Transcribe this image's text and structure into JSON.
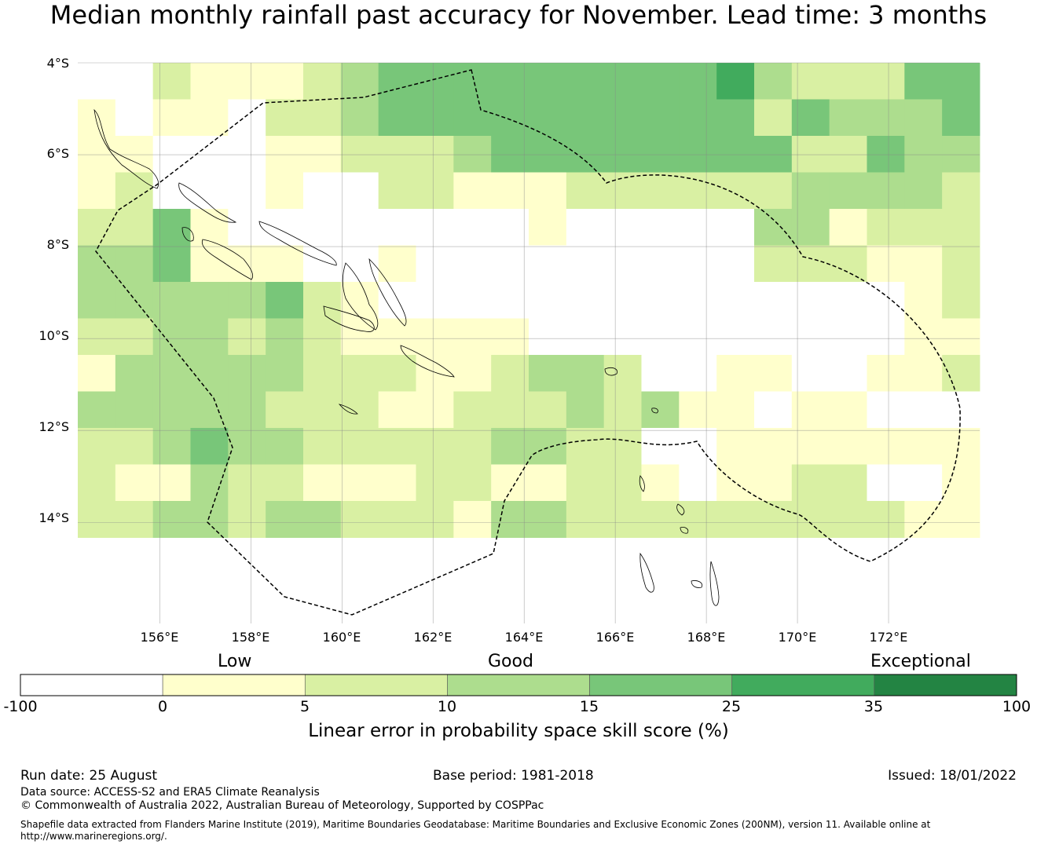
{
  "title": "Median monthly rainfall past accuracy for November. Lead time: 3 months",
  "map": {
    "lon_range": [
      154.2,
      174.0
    ],
    "lat_range": [
      -4.0,
      -16.2
    ],
    "lat_labels": [
      "4°S",
      "6°S",
      "8°S",
      "10°S",
      "12°S",
      "14°S"
    ],
    "lon_labels": [
      "156°E",
      "158°E",
      "160°E",
      "162°E",
      "164°E",
      "166°E",
      "168°E",
      "170°E",
      "172°E"
    ],
    "grid_cols": 24,
    "grid_rows": 13,
    "skill_grid": [
      "002111234444444445322244",
      "101102234444444444243334",
      "110001122234444444422433",
      "120001002211122222233332",
      "224100000000100000331222",
      "334111001000000000222112",
      "333334210000000000000012",
      "223323211111000000000011",
      "133333222112332001100112",
      "333332221122232311011000",
      "223433222223322001111111",
      "211322111221122101122001",
      "223323322213322222222211"
    ],
    "colors": [
      "#ffffff",
      "#ffffcc",
      "#d9f0a3",
      "#addd8e",
      "#78c679",
      "#41ab5d",
      "#238443"
    ]
  },
  "colorbar": {
    "category_labels": [
      "Low",
      "Good",
      "Exceptional"
    ],
    "ticks": [
      "-100",
      "0",
      "5",
      "10",
      "15",
      "25",
      "35",
      "100"
    ],
    "colors": [
      "#ffffff",
      "#ffffcc",
      "#d9f0a3",
      "#addd8e",
      "#78c679",
      "#41ab5d",
      "#238443"
    ],
    "title": "Linear error in probability space skill score (%)"
  },
  "footer": {
    "run_date": "Run date: 25 August",
    "base_period": "Base period: 1981-2018",
    "issued": "Issued: 18/01/2022",
    "data_source": "Data source: ACCESS-S2 and ERA5 Climate Reanalysis",
    "copyright": "© Commonwealth of Australia 2022, Australian Bureau of Meteorology, Supported by COSPPac",
    "shapefile_line1": "Shapefile data extracted from Flanders Marine Institute (2019), Maritime Boundaries Geodatabase: Maritime Boundaries and Exclusive Economic Zones (200NM), version 11. Available online at",
    "shapefile_line2": "http://www.marineregions.org/."
  }
}
